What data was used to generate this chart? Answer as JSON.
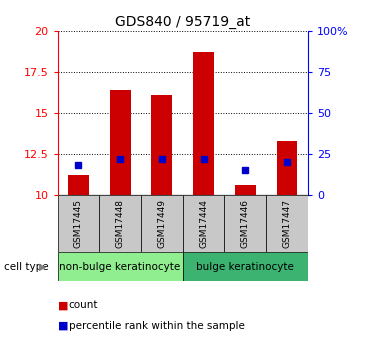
{
  "title": "GDS840 / 95719_at",
  "samples": [
    "GSM17445",
    "GSM17448",
    "GSM17449",
    "GSM17444",
    "GSM17446",
    "GSM17447"
  ],
  "count_values": [
    11.2,
    16.4,
    16.1,
    18.7,
    10.6,
    13.3
  ],
  "percentile_values": [
    11.8,
    12.2,
    12.2,
    12.2,
    11.5,
    12.0
  ],
  "ymin": 10,
  "ymax": 20,
  "yticks": [
    10,
    12.5,
    15,
    17.5,
    20
  ],
  "ytick_labels": [
    "10",
    "12.5",
    "15",
    "17.5",
    "20"
  ],
  "right_yticks": [
    0,
    25,
    50,
    75,
    100
  ],
  "right_ytick_labels": [
    "0",
    "25",
    "50",
    "75",
    "100%"
  ],
  "bar_color": "#cc0000",
  "marker_color": "#0000cc",
  "bar_width": 0.5,
  "group1_label": "non-bulge keratinocyte",
  "group2_label": "bulge keratinocyte",
  "group1_indices": [
    0,
    1,
    2
  ],
  "group2_indices": [
    3,
    4,
    5
  ],
  "group1_bg": "#90ee90",
  "group2_bg": "#3cb371",
  "sample_bg": "#c8c8c8",
  "legend_count_label": "count",
  "legend_pct_label": "percentile rank within the sample",
  "cell_type_label": "cell type"
}
